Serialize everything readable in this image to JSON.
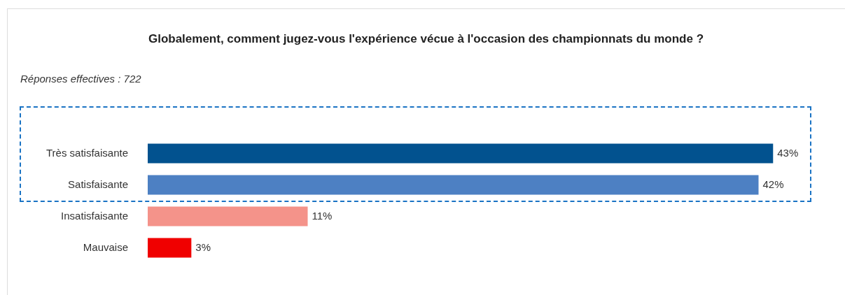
{
  "chart_data": {
    "type": "bar",
    "orientation": "horizontal",
    "title": "Globalement, comment jugez-vous l'expérience vécue à l'occasion des championnats du monde ?",
    "subtitle": "Réponses effectives : 722",
    "categories": [
      "Très satisfaisante",
      "Satisfaisante",
      "Insatisfaisante",
      "Mauvaise"
    ],
    "values": [
      43,
      42,
      11,
      3
    ],
    "colors": [
      "#02528f",
      "#4d80c3",
      "#f4938a",
      "#f00000"
    ],
    "value_labels": [
      "43%",
      "42%",
      "11%",
      "3%"
    ],
    "grid": false,
    "legend": false
  }
}
